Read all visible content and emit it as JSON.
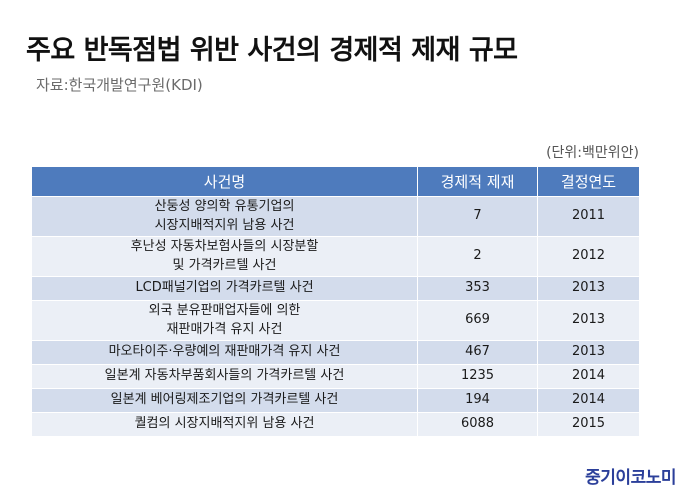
{
  "title": "주요 반독점법 위반 사건의 경제적 제재 규모",
  "source": "자료:한국개발연구원(KDI)",
  "unit": "(단위:백만위안)",
  "table": {
    "headers": [
      "사건명",
      "경제적 제재",
      "결정연도"
    ],
    "rows": [
      {
        "name": "산둥성 양의학 유통기업의\n시장지배적지위 남용 사건",
        "sanction": "7",
        "year": "2011"
      },
      {
        "name": "후난성 자동차보험사들의 시장분할\n및 가격카르텔 사건",
        "sanction": "2",
        "year": "2012"
      },
      {
        "name": "LCD패널기업의 가격카르텔 사건",
        "sanction": "353",
        "year": "2013"
      },
      {
        "name": "외국 분유판매업자들에 의한\n재판매가격 유지 사건",
        "sanction": "669",
        "year": "2013"
      },
      {
        "name": "마오타이주·우량예의 재판매가격 유지 사건",
        "sanction": "467",
        "year": "2013"
      },
      {
        "name": "일본계 자동차부품회사들의 가격카르텔 사건",
        "sanction": "1235",
        "year": "2014"
      },
      {
        "name": "일본계 베어링제조기업의 가격카르텔 사건",
        "sanction": "194",
        "year": "2014"
      },
      {
        "name": "퀄컴의 시장지배적지위 남용 사건",
        "sanction": "6088",
        "year": "2015"
      }
    ]
  },
  "brand": "중기이코노미"
}
